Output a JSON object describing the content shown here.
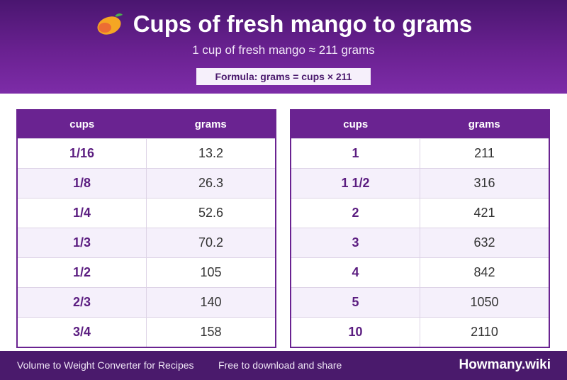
{
  "header": {
    "title": "Cups of fresh mango to grams",
    "subtitle": "1 cup of fresh mango ≈ 211 grams",
    "formula": "Formula: grams = cups × 211"
  },
  "table_left": {
    "col_cups": "cups",
    "col_grams": "grams",
    "rows": [
      {
        "cups": "1/16",
        "grams": "13.2"
      },
      {
        "cups": "1/8",
        "grams": "26.3"
      },
      {
        "cups": "1/4",
        "grams": "52.6"
      },
      {
        "cups": "1/3",
        "grams": "70.2"
      },
      {
        "cups": "1/2",
        "grams": "105"
      },
      {
        "cups": "2/3",
        "grams": "140"
      },
      {
        "cups": "3/4",
        "grams": "158"
      }
    ]
  },
  "table_right": {
    "col_cups": "cups",
    "col_grams": "grams",
    "rows": [
      {
        "cups": "1",
        "grams": "211"
      },
      {
        "cups": "1 1/2",
        "grams": "316"
      },
      {
        "cups": "2",
        "grams": "421"
      },
      {
        "cups": "3",
        "grams": "632"
      },
      {
        "cups": "4",
        "grams": "842"
      },
      {
        "cups": "5",
        "grams": "1050"
      },
      {
        "cups": "10",
        "grams": "2110"
      }
    ]
  },
  "footer": {
    "left": "Volume to Weight Converter for Recipes",
    "middle": "Free to download and share",
    "brand": "Howmany.wiki"
  },
  "colors": {
    "header_purple": "#6a2191",
    "table_header": "#6a2391",
    "cups_text": "#5b1d80",
    "footer": "#4a1a6c"
  }
}
